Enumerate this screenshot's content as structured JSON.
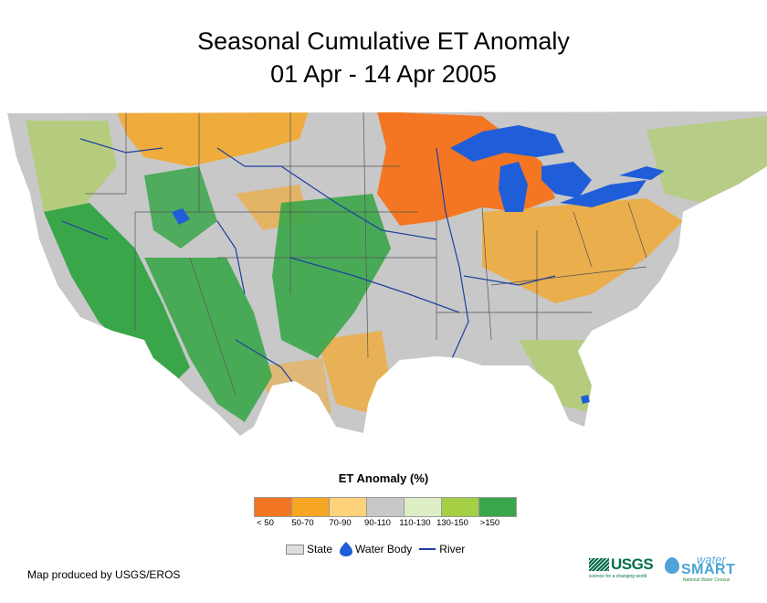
{
  "title_line1": "Seasonal Cumulative ET Anomaly",
  "title_line2": "01 Apr - 14 Apr 2005",
  "legend": {
    "title": "ET Anomaly (%)",
    "classes": [
      {
        "label": "< 50",
        "color": "#f47622"
      },
      {
        "label": "50-70",
        "color": "#f6a623"
      },
      {
        "label": "70-90",
        "color": "#fed27a"
      },
      {
        "label": "90-110",
        "color": "#c8c8c8"
      },
      {
        "label": "110-130",
        "color": "#ddeec4"
      },
      {
        "label": "130-150",
        "color": "#a5cf44"
      },
      {
        "label": ">150",
        "color": "#3aa64a"
      }
    ],
    "keys": {
      "state": "State",
      "water_body": "Water Body",
      "river": "River"
    }
  },
  "colors": {
    "water": "#1f5ed8",
    "river": "#1f3f9f",
    "state_border": "#555555"
  },
  "credit": "Map produced by USGS/EROS",
  "logos": {
    "usgs": "USGS",
    "usgs_tagline": "science for a changing world",
    "watersmart_top": "water",
    "watersmart_main": "SMART",
    "watersmart_sub": "National Water Census"
  }
}
